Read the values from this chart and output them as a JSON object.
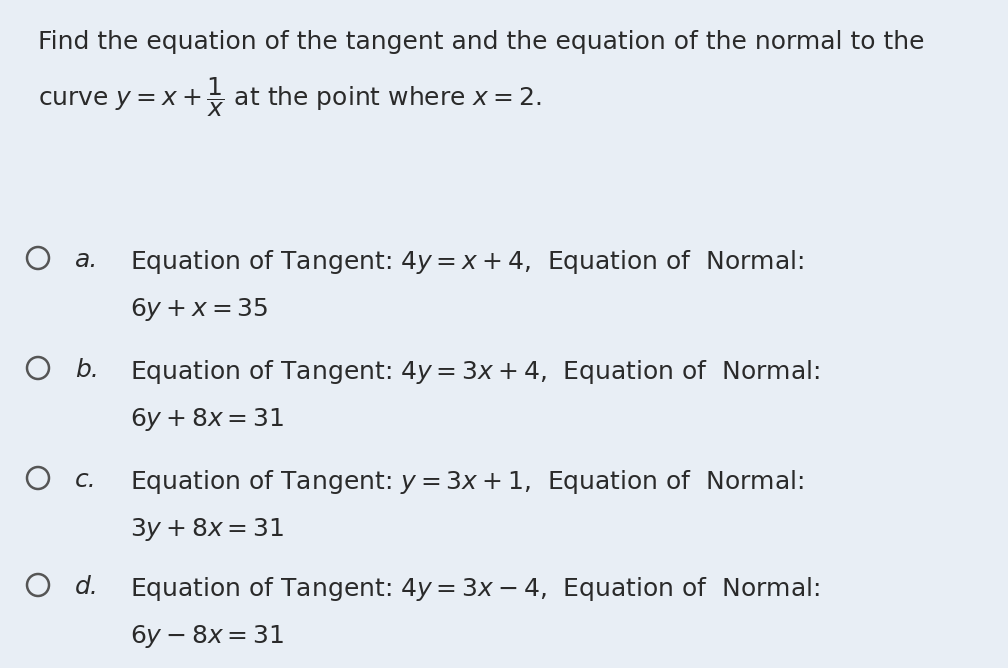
{
  "background_color": "#e8eef5",
  "title_line1": "Find the equation of the tangent and the equation of the normal to the",
  "title_line2": "curve $y = x + \\dfrac{1}{x}$ at the point where $x = 2$.",
  "options": [
    {
      "label": "a.",
      "line1": "Equation of Tangent: $4y = x + 4$,  Equation of  Normal:",
      "line2": "$6y + x = 35$"
    },
    {
      "label": "b.",
      "line1": "Equation of Tangent: $4y = 3x + 4$,  Equation of  Normal:",
      "line2": "$6y + 8x = 31$"
    },
    {
      "label": "c.",
      "line1": "Equation of Tangent: $y = 3x + 1$,  Equation of  Normal:",
      "line2": "$3y + 8x = 31$"
    },
    {
      "label": "d.",
      "line1": "Equation of Tangent: $4y = 3x - 4$,  Equation of  Normal:",
      "line2": "$6y - 8x = 31$"
    }
  ],
  "text_color": "#2a2a2a",
  "font_size_title": 18,
  "font_size_option": 18,
  "circle_color": "#555555",
  "fig_width": 10.08,
  "fig_height": 6.68,
  "dpi": 100
}
